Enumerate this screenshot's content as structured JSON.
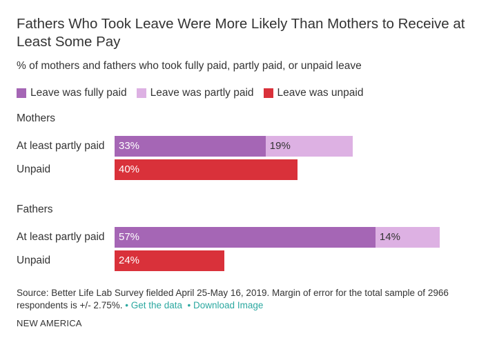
{
  "chart_data": {
    "type": "bar",
    "orientation": "horizontal",
    "stacked": true,
    "title": "Fathers Who Took Leave Were More Likely Than Mothers to Receive at Least Some Pay",
    "subtitle": "% of mothers and fathers who took fully paid, partly paid, or unpaid leave",
    "legend": [
      {
        "name": "Leave was fully paid",
        "color": "#a566b5"
      },
      {
        "name": "Leave was partly paid",
        "color": "#ddb1e3"
      },
      {
        "name": "Leave was unpaid",
        "color": "#d9313a"
      }
    ],
    "groups": [
      {
        "name": "Mothers",
        "rows": [
          {
            "category": "At least partly paid",
            "segments": [
              {
                "series": "Leave was fully paid",
                "value": 33,
                "label": "33%"
              },
              {
                "series": "Leave was partly paid",
                "value": 19,
                "label": "19%"
              }
            ]
          },
          {
            "category": "Unpaid",
            "segments": [
              {
                "series": "Leave was unpaid",
                "value": 40,
                "label": "40%"
              }
            ]
          }
        ]
      },
      {
        "name": "Fathers",
        "rows": [
          {
            "category": "At least partly paid",
            "segments": [
              {
                "series": "Leave was fully paid",
                "value": 57,
                "label": "57%"
              },
              {
                "series": "Leave was partly paid",
                "value": 14,
                "label": "14%"
              }
            ]
          },
          {
            "category": "Unpaid",
            "segments": [
              {
                "series": "Leave was unpaid",
                "value": 24,
                "label": "24%"
              }
            ]
          }
        ]
      }
    ],
    "xlim": [
      0,
      100
    ],
    "grid": false
  },
  "footer": {
    "source": "Source:  Better Life Lab Survey fielded April 25-May 16, 2019. Margin of error for the total sample of 2966 respondents is +/- 2.75%.",
    "get_data": "Get the data",
    "download": "Download Image",
    "brand": "NEW AMERICA"
  }
}
